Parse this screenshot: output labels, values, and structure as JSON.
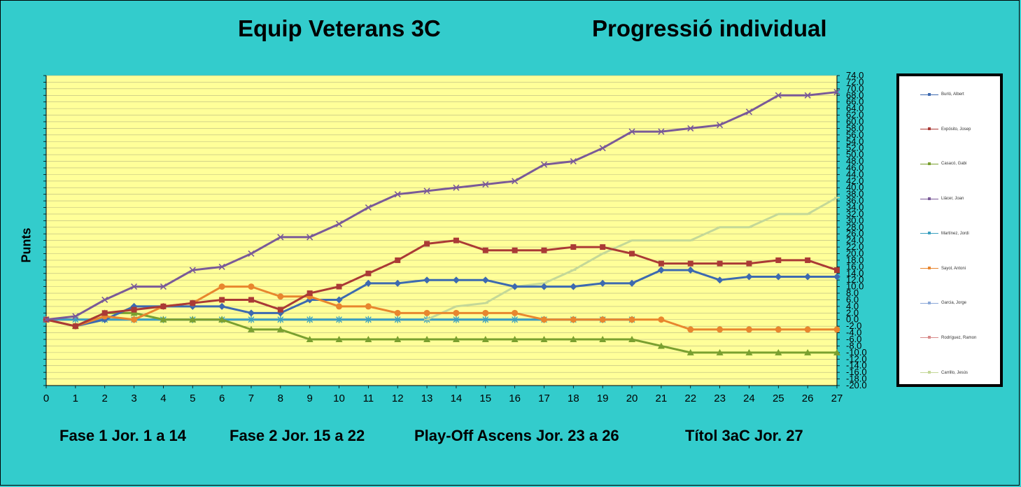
{
  "titles": {
    "left": "Equip Veterans 3C",
    "right": "Progressió individual"
  },
  "ylabel": "Punts",
  "phases": [
    "Fase 1 Jor. 1 a 14",
    "Fase 2  Jor. 15 a 22",
    "Play-Off Ascens Jor. 23 a 26",
    "Títol 3aC  Jor. 27"
  ],
  "colors": {
    "background": "#33cccc",
    "plot": "#ffff99",
    "grid": "#b8b880"
  },
  "chart_data": {
    "type": "line",
    "title": "",
    "xlabel": "",
    "ylabel": "Punts",
    "x": [
      0,
      1,
      2,
      3,
      4,
      5,
      6,
      7,
      8,
      9,
      10,
      11,
      12,
      13,
      14,
      15,
      16,
      17,
      18,
      19,
      20,
      21,
      22,
      23,
      24,
      25,
      26,
      27
    ],
    "ylim": [
      -20,
      74
    ],
    "y_ticks": [
      74,
      72,
      70,
      68,
      66,
      64,
      62,
      60,
      58,
      56,
      54,
      52,
      50,
      48,
      46,
      44,
      42,
      40,
      38,
      36,
      34,
      32,
      30,
      28,
      26,
      24,
      22,
      20,
      18,
      16,
      14,
      12,
      10,
      8,
      6,
      4,
      2,
      0,
      -2,
      -4,
      -6,
      -8,
      -10,
      -12,
      -14,
      -16,
      -18,
      -20
    ],
    "y_axis_side": "right",
    "grid": true,
    "legend_position": "right",
    "series": [
      {
        "name": "Burló, Albert",
        "color": "#3d6ab0",
        "marker": "diamond",
        "values": [
          0,
          -2,
          0,
          4,
          4,
          4,
          4,
          2,
          2,
          6,
          6,
          11,
          11,
          12,
          12,
          12,
          10,
          10,
          10,
          11,
          11,
          15,
          15,
          12,
          13,
          13,
          13,
          13
        ]
      },
      {
        "name": "Expósito, Josep",
        "color": "#aa3a36",
        "marker": "square",
        "values": [
          0,
          -2,
          2,
          3,
          4,
          5,
          6,
          6,
          3,
          8,
          10,
          14,
          18,
          23,
          24,
          21,
          21,
          21,
          22,
          22,
          20,
          17,
          17,
          17,
          17,
          18,
          18,
          15
        ]
      },
      {
        "name": "Casacó, Gabi",
        "color": "#7aa030",
        "marker": "triangle",
        "values": [
          0,
          -2,
          2,
          2,
          0,
          0,
          0,
          -3,
          -3,
          -6,
          -6,
          -6,
          -6,
          -6,
          -6,
          -6,
          -6,
          -6,
          -6,
          -6,
          -6,
          -8,
          -10,
          -10,
          -10,
          -10,
          -10,
          -10
        ]
      },
      {
        "name": "Llácer, Joan",
        "color": "#7a5a98",
        "marker": "x",
        "values": [
          0,
          1,
          6,
          10,
          10,
          15,
          16,
          20,
          25,
          25,
          29,
          34,
          38,
          39,
          40,
          41,
          42,
          47,
          48,
          52,
          57,
          57,
          58,
          59,
          63,
          68,
          68,
          69
        ]
      },
      {
        "name": "Martínez, Jordi",
        "color": "#3aa0c0",
        "marker": "star",
        "values": [
          0,
          0,
          0,
          0,
          0,
          0,
          0,
          0,
          0,
          0,
          0,
          0,
          0,
          0,
          0,
          0,
          0,
          0,
          0,
          0,
          0,
          null,
          null,
          null,
          null,
          null,
          null,
          null
        ]
      },
      {
        "name": "Sayol, Antoni",
        "color": "#e8862e",
        "marker": "circle",
        "values": [
          0,
          -2,
          1,
          0,
          4,
          5,
          10,
          10,
          7,
          7,
          4,
          4,
          2,
          2,
          2,
          2,
          2,
          0,
          0,
          0,
          0,
          0,
          -3,
          -3,
          -3,
          -3,
          -3,
          -3
        ]
      },
      {
        "name": "Garcia, Jorge",
        "color": "#8aa8d8",
        "marker": "plus",
        "values": [
          0,
          0,
          0,
          0,
          0,
          0,
          0,
          0,
          0,
          0,
          0,
          0,
          0,
          0,
          0,
          0,
          0,
          0,
          0,
          0,
          0,
          null,
          null,
          null,
          null,
          null,
          null,
          null
        ]
      },
      {
        "name": "Rodríguez, Ramon",
        "color": "#d88a8a",
        "marker": "dash",
        "values": [
          0,
          0,
          0,
          0,
          0,
          0,
          0,
          0,
          0,
          0,
          0,
          0,
          0,
          0,
          0,
          0,
          0,
          0,
          0,
          0,
          0,
          null,
          null,
          null,
          null,
          null,
          null,
          null
        ]
      },
      {
        "name": "Carrillo, Jesús",
        "color": "#c4d898",
        "marker": "dash",
        "values": [
          null,
          null,
          null,
          null,
          null,
          null,
          null,
          null,
          null,
          null,
          null,
          null,
          null,
          0,
          4,
          5,
          10,
          11,
          15,
          20,
          24,
          24,
          24,
          28,
          28,
          32,
          32,
          37
        ]
      }
    ]
  }
}
